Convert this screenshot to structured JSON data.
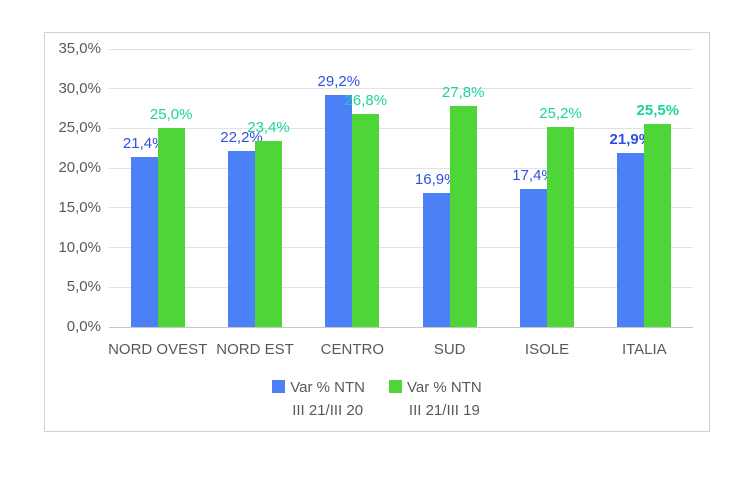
{
  "chart_data": {
    "type": "bar",
    "title": "",
    "xlabel": "",
    "ylabel": "",
    "categories": [
      "NORD OVEST",
      "NORD EST",
      "CENTRO",
      "SUD",
      "ISOLE",
      "ITALIA"
    ],
    "series": [
      {
        "name": "Var % NTN III 21/III 20",
        "legend_lines": [
          "Var % NTN",
          "III 21/III 20"
        ],
        "bar_color": "#4C80F6",
        "label_color": "#3050E0",
        "values": [
          21.4,
          22.2,
          29.2,
          16.9,
          17.4,
          21.9
        ],
        "labels": [
          "21,4%",
          "22,2%",
          "29,2%",
          "16,9%",
          "17,4%",
          "21,9%"
        ]
      },
      {
        "name": "Var % NTN III 21/III 19",
        "legend_lines": [
          "Var % NTN",
          "III 21/III 19"
        ],
        "bar_color": "#4ED639",
        "label_color": "#1CD3A0",
        "values": [
          25.0,
          23.4,
          26.8,
          27.8,
          25.2,
          25.5
        ],
        "labels": [
          "25,0%",
          "23,4%",
          "26,8%",
          "27,8%",
          "25,2%",
          "25,5%"
        ]
      }
    ],
    "bold_label_category": "ITALIA",
    "ylim": [
      0,
      35
    ],
    "y_tick_values": [
      35,
      30,
      25,
      20,
      15,
      10,
      5,
      0
    ],
    "y_tick_labels": [
      "35,0%",
      "30,0%",
      "25,0%",
      "20,0%",
      "15,0%",
      "10,0%",
      "5,0%",
      "0,0%"
    ],
    "grid": true,
    "legend_position": "bottom"
  },
  "colors": {
    "axis_text": "#595959",
    "category_text": "#595959",
    "legend_text": "#595959",
    "gridline": "#E2E2E2",
    "axis_line": "#C6C6C6",
    "box_border": "#D2D2D2",
    "background": "#FFFFFF"
  }
}
